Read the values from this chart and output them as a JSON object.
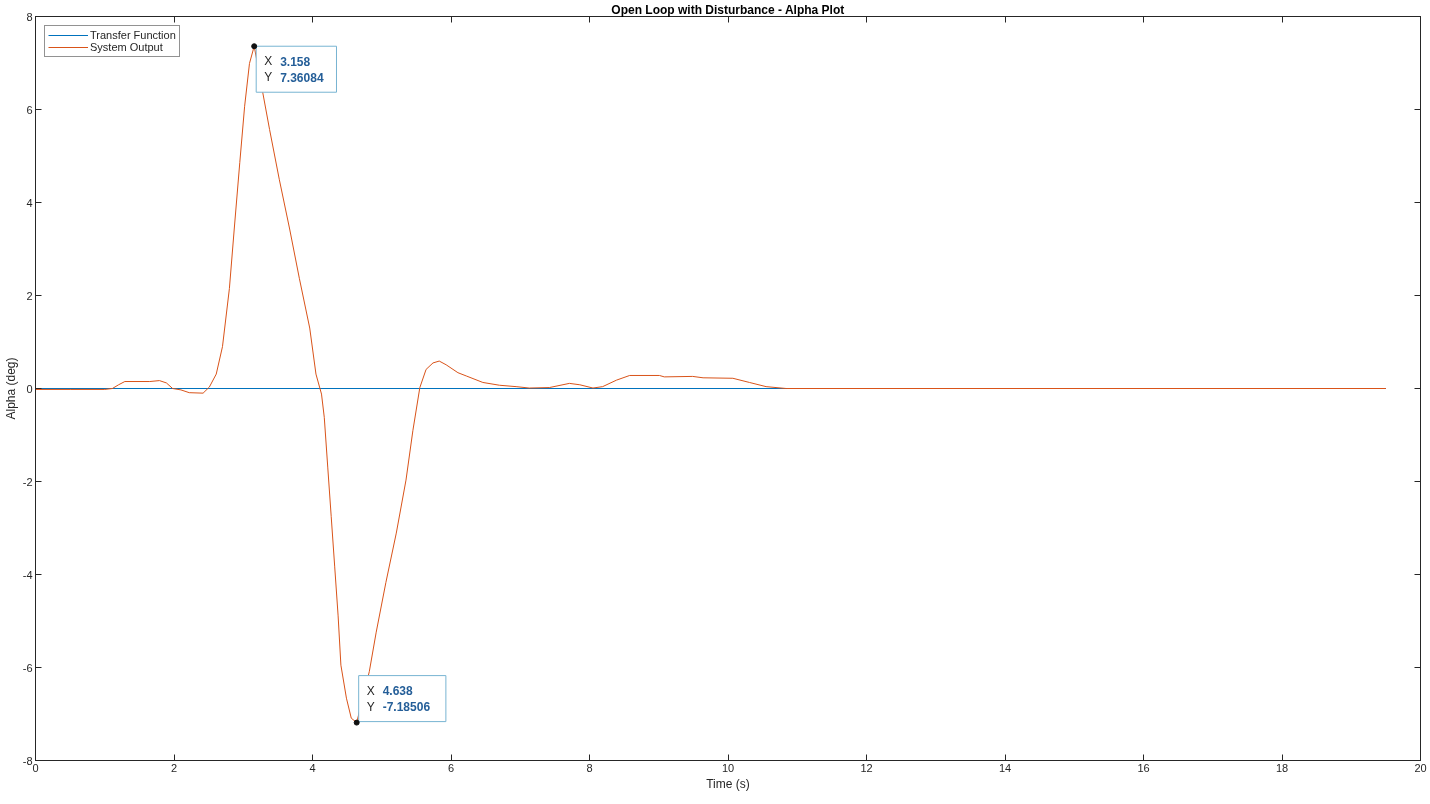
{
  "chart_data": {
    "type": "line",
    "title": "Open Loop with Disturbance - Alpha Plot",
    "xlabel": "Time (s)",
    "ylabel": "Alpha (deg)",
    "xlim": [
      0,
      20
    ],
    "ylim": [
      -8,
      8
    ],
    "xticks": [
      0,
      2,
      4,
      6,
      8,
      10,
      12,
      14,
      16,
      18,
      20
    ],
    "yticks": [
      -8,
      -6,
      -4,
      -2,
      0,
      2,
      4,
      6,
      8
    ],
    "grid": false,
    "legend": "top left",
    "series": [
      {
        "name": "Transfer Function",
        "color": "#0072bd",
        "x": [
          0,
          19.5
        ],
        "values": [
          0,
          0
        ]
      },
      {
        "name": "System Output",
        "color": "#d95319",
        "x": [
          0,
          0.5,
          1.0,
          1.11,
          1.2,
          1.29,
          1.65,
          1.79,
          1.89,
          1.98,
          2.1,
          2.22,
          2.42,
          2.51,
          2.61,
          2.7,
          2.8,
          2.87,
          2.95,
          3.02,
          3.09,
          3.158,
          3.38,
          3.52,
          3.67,
          3.81,
          3.96,
          4.05,
          4.13,
          4.17,
          4.22,
          4.27,
          4.32,
          4.37,
          4.41,
          4.49,
          4.56,
          4.638,
          4.82,
          4.92,
          5.06,
          5.21,
          5.35,
          5.45,
          5.55,
          5.64,
          5.74,
          5.83,
          5.93,
          6.1,
          6.22,
          6.46,
          6.7,
          6.94,
          7.13,
          7.42,
          7.71,
          7.86,
          8.05,
          8.19,
          8.39,
          8.58,
          9.01,
          9.08,
          9.49,
          9.64,
          10.07,
          10.31,
          10.55,
          10.84,
          19.5
        ],
        "values": [
          -0.02,
          -0.02,
          -0.02,
          0.0,
          0.08,
          0.15,
          0.15,
          0.17,
          0.12,
          0.0,
          -0.03,
          -0.09,
          -0.1,
          0.03,
          0.31,
          0.9,
          2.15,
          3.43,
          4.86,
          6.07,
          6.99,
          7.36084,
          5.57,
          4.5,
          3.43,
          2.37,
          1.3,
          0.31,
          -0.12,
          -0.62,
          -1.69,
          -2.75,
          -3.82,
          -4.89,
          -5.95,
          -6.66,
          -7.09,
          -7.18506,
          -6.09,
          -5.24,
          -4.17,
          -3.11,
          -1.97,
          -0.9,
          0.02,
          0.41,
          0.55,
          0.59,
          0.51,
          0.34,
          0.27,
          0.13,
          0.07,
          0.04,
          0.01,
          0.02,
          0.11,
          0.08,
          0.01,
          0.04,
          0.18,
          0.28,
          0.28,
          0.25,
          0.26,
          0.23,
          0.22,
          0.13,
          0.04,
          0.0,
          0.0
        ]
      }
    ],
    "annotations": [
      {
        "text": "X 3.158\nY 7.36084",
        "x": 3.158,
        "y": 7.36084
      },
      {
        "text": "X 4.638\nY -7.18506",
        "x": 4.638,
        "y": -7.18506
      }
    ]
  }
}
